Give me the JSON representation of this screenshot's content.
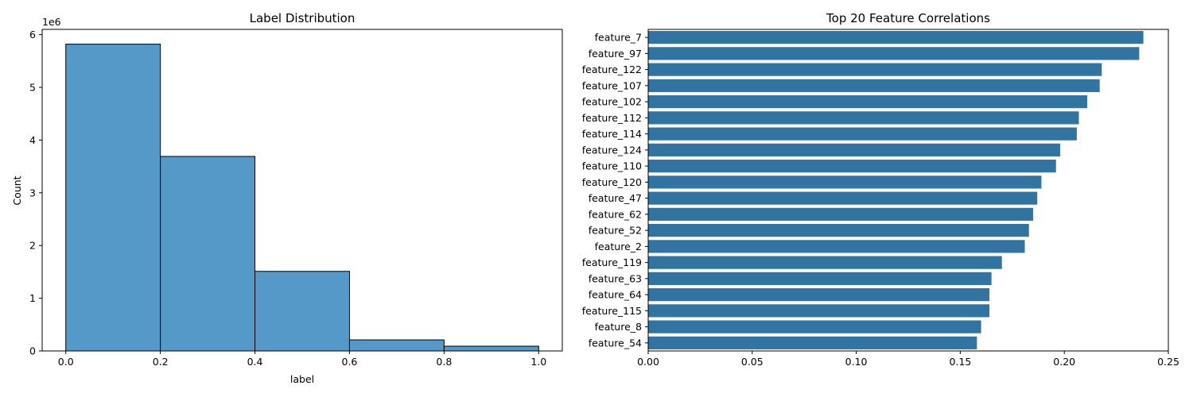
{
  "chart_data": [
    {
      "type": "bar",
      "title": "Label Distribution",
      "xlabel": "label",
      "ylabel": "Count",
      "y_multiplier_label": "1e6",
      "xlim": [
        -0.05,
        1.05
      ],
      "ylim": [
        0,
        6.1
      ],
      "x_ticks": [
        "0.0",
        "0.2",
        "0.4",
        "0.6",
        "0.8",
        "1.0"
      ],
      "y_ticks": [
        "0",
        "1",
        "2",
        "3",
        "4",
        "5",
        "6"
      ],
      "bins": [
        {
          "start": 0.0,
          "end": 0.2,
          "value": 5.82
        },
        {
          "start": 0.2,
          "end": 0.4,
          "value": 3.69
        },
        {
          "start": 0.4,
          "end": 0.6,
          "value": 1.51
        },
        {
          "start": 0.6,
          "end": 0.8,
          "value": 0.21
        },
        {
          "start": 0.8,
          "end": 1.0,
          "value": 0.09
        }
      ],
      "bar_color": "#5599c8",
      "edge_color": "#000000",
      "grid": false
    },
    {
      "type": "bar",
      "orientation": "horizontal",
      "title": "Top 20 Feature Correlations",
      "xlabel": "",
      "ylabel": "",
      "xlim": [
        0,
        0.25
      ],
      "x_ticks": [
        "0.00",
        "0.05",
        "0.10",
        "0.15",
        "0.20",
        "0.25"
      ],
      "categories": [
        "feature_7",
        "feature_97",
        "feature_122",
        "feature_107",
        "feature_102",
        "feature_112",
        "feature_114",
        "feature_124",
        "feature_110",
        "feature_120",
        "feature_47",
        "feature_62",
        "feature_52",
        "feature_2",
        "feature_119",
        "feature_63",
        "feature_64",
        "feature_115",
        "feature_8",
        "feature_54"
      ],
      "values": [
        0.238,
        0.236,
        0.218,
        0.217,
        0.211,
        0.207,
        0.206,
        0.198,
        0.196,
        0.189,
        0.187,
        0.185,
        0.183,
        0.181,
        0.17,
        0.165,
        0.164,
        0.164,
        0.16,
        0.158
      ],
      "bar_color": "#3274a1",
      "grid": false
    }
  ]
}
